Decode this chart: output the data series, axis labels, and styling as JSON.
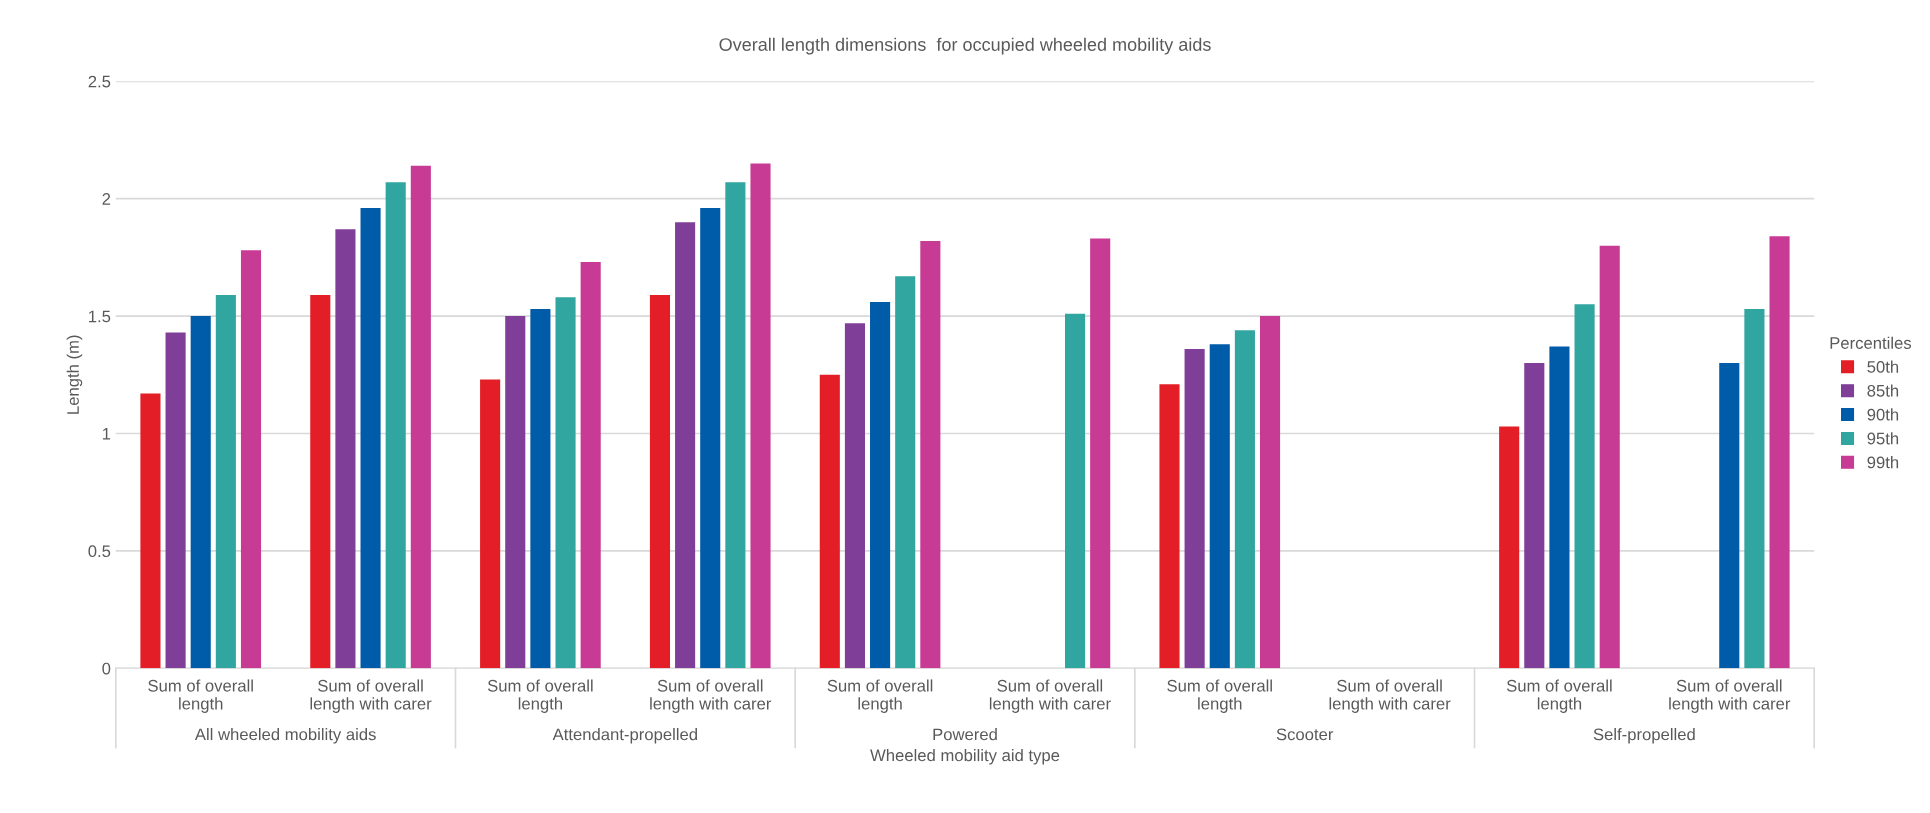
{
  "chart_data": {
    "type": "bar",
    "title": "Overall length dimensions  for occupied wheeled mobility aids",
    "xlabel": "Wheeled mobility aid type",
    "ylabel": "Length (m)",
    "legend_title": "Percentiles",
    "categories": [
      "Sum of overall\nlength",
      "Sum of overall\nlength with carer",
      "Sum of overall\nlength",
      "Sum of overall\nlength with carer",
      "Sum of overall\nlength",
      "Sum of overall\nlength with carer",
      "Sum of overall\nlength",
      "Sum of overall\nlength with carer",
      "Sum of overall\nlength",
      "Sum of overall\nlength with carer"
    ],
    "annotations": [
      "All wheeled mobility aids",
      "Attendant-propelled",
      "Powered",
      "Scooter",
      "Self-propelled"
    ],
    "series": [
      {
        "name": "50th",
        "color": "#e41e26",
        "values": [
          1.17,
          1.59,
          1.23,
          1.59,
          1.25,
          null,
          1.21,
          null,
          1.03,
          null
        ]
      },
      {
        "name": "85th",
        "color": "#7f3f98",
        "values": [
          1.43,
          1.87,
          1.5,
          1.9,
          1.47,
          null,
          1.36,
          null,
          1.3,
          null
        ]
      },
      {
        "name": "90th",
        "color": "#005ba9",
        "values": [
          1.5,
          1.96,
          1.53,
          1.96,
          1.56,
          null,
          1.38,
          null,
          1.37,
          1.3
        ]
      },
      {
        "name": "95th",
        "color": "#31a59f",
        "values": [
          1.59,
          2.07,
          1.58,
          2.07,
          1.67,
          1.51,
          1.44,
          null,
          1.55,
          1.53
        ]
      },
      {
        "name": "99th",
        "color": "#c83b95",
        "values": [
          1.78,
          2.14,
          1.73,
          2.15,
          1.82,
          1.83,
          1.5,
          null,
          1.8,
          1.84
        ]
      }
    ],
    "ylim": [
      0,
      2.5
    ],
    "yticks": [
      0,
      0.5,
      1,
      1.5,
      2,
      2.5
    ],
    "grid": "y",
    "legend": "right"
  }
}
